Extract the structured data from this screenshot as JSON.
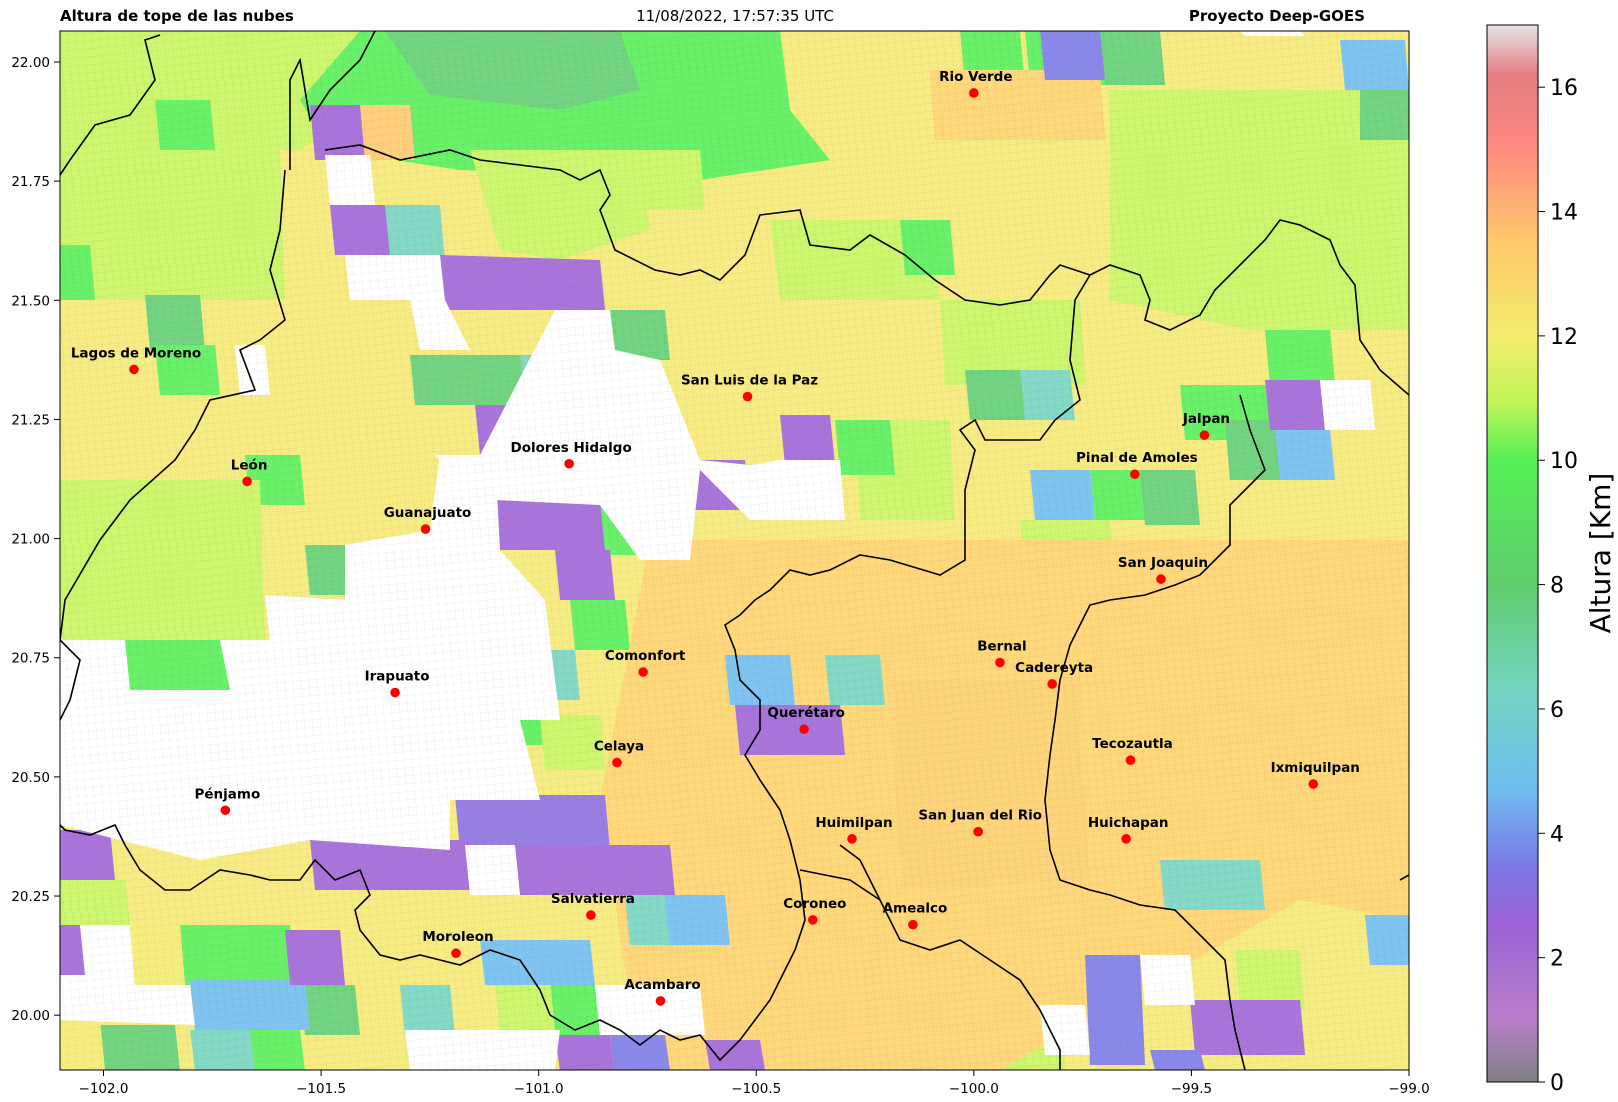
{
  "header": {
    "left_title": "Altura de tope de las nubes",
    "center_title": "11/08/2022, 17:57:35 UTC",
    "right_title": "Proyecto Deep-GOES"
  },
  "map": {
    "lon_range": [
      -102.1,
      -99.0
    ],
    "lat_range": [
      19.885,
      22.065
    ],
    "x_ticks": [
      {
        "value": -102.0,
        "label": "−102.0"
      },
      {
        "value": -101.5,
        "label": "−101.5"
      },
      {
        "value": -101.0,
        "label": "−101.0"
      },
      {
        "value": -100.5,
        "label": "−100.5"
      },
      {
        "value": -100.0,
        "label": "−100.0"
      },
      {
        "value": -99.5,
        "label": "−99.5"
      },
      {
        "value": -99.0,
        "label": "−99.0"
      }
    ],
    "y_ticks": [
      {
        "value": 20.0,
        "label": "20.00"
      },
      {
        "value": 20.25,
        "label": "20.25"
      },
      {
        "value": 20.5,
        "label": "20.50"
      },
      {
        "value": 20.75,
        "label": "20.75"
      },
      {
        "value": 21.0,
        "label": "21.00"
      },
      {
        "value": 21.25,
        "label": "21.25"
      },
      {
        "value": 21.5,
        "label": "21.50"
      },
      {
        "value": 21.75,
        "label": "21.75"
      },
      {
        "value": 22.0,
        "label": "22.00"
      }
    ],
    "marker_color": "#ff0000",
    "cities": [
      {
        "name": "Rio Verde",
        "lon": -100.0,
        "lat": 21.935
      },
      {
        "name": "Lagos de Moreno",
        "lon": -101.93,
        "lat": 21.355
      },
      {
        "name": "San Luis de la Paz",
        "lon": -100.52,
        "lat": 21.298
      },
      {
        "name": "Jalpan",
        "lon": -99.47,
        "lat": 21.217
      },
      {
        "name": "Dolores Hidalgo",
        "lon": -100.93,
        "lat": 21.157
      },
      {
        "name": "León",
        "lon": -101.67,
        "lat": 21.12
      },
      {
        "name": "Pinal de Amoles",
        "lon": -99.63,
        "lat": 21.135
      },
      {
        "name": "Guanajuato",
        "lon": -101.26,
        "lat": 21.02
      },
      {
        "name": "San Joaquin",
        "lon": -99.57,
        "lat": 20.915
      },
      {
        "name": "Bernal",
        "lon": -99.94,
        "lat": 20.74
      },
      {
        "name": "Comonfort",
        "lon": -100.76,
        "lat": 20.72
      },
      {
        "name": "Cadereyta",
        "lon": -99.82,
        "lat": 20.695
      },
      {
        "name": "Irapuato",
        "lon": -101.33,
        "lat": 20.677
      },
      {
        "name": "Querétaro",
        "lon": -100.39,
        "lat": 20.6
      },
      {
        "name": "Tecozautla",
        "lon": -99.64,
        "lat": 20.535
      },
      {
        "name": "Celaya",
        "lon": -100.82,
        "lat": 20.53
      },
      {
        "name": "Ixmiquilpan",
        "lon": -99.22,
        "lat": 20.485
      },
      {
        "name": "Pénjamo",
        "lon": -101.72,
        "lat": 20.43
      },
      {
        "name": "San Juan del Rio",
        "lon": -99.99,
        "lat": 20.385
      },
      {
        "name": "Huimilpan",
        "lon": -100.28,
        "lat": 20.37
      },
      {
        "name": "Huichapan",
        "lon": -99.65,
        "lat": 20.37
      },
      {
        "name": "Salvatierra",
        "lon": -100.88,
        "lat": 20.21
      },
      {
        "name": "Coroneo",
        "lon": -100.37,
        "lat": 20.2
      },
      {
        "name": "Amealco",
        "lon": -100.14,
        "lat": 20.19
      },
      {
        "name": "Moroleon",
        "lon": -101.19,
        "lat": 20.13
      },
      {
        "name": "Acambaro",
        "lon": -100.72,
        "lat": 20.03
      }
    ]
  },
  "colorbar": {
    "label": "Altura [Km]",
    "range": [
      0,
      17
    ],
    "ticks": [
      {
        "value": 0,
        "label": "0"
      },
      {
        "value": 2,
        "label": "2"
      },
      {
        "value": 4,
        "label": "4"
      },
      {
        "value": 6,
        "label": "6"
      },
      {
        "value": 8,
        "label": "8"
      },
      {
        "value": 10,
        "label": "10"
      },
      {
        "value": 12,
        "label": "12"
      },
      {
        "value": 14,
        "label": "14"
      },
      {
        "value": 16,
        "label": "16"
      }
    ],
    "stops": [
      {
        "value": 0,
        "color": "#808080"
      },
      {
        "value": 1,
        "color": "#b77fc9"
      },
      {
        "value": 2.5,
        "color": "#9e62d6"
      },
      {
        "value": 3.5,
        "color": "#7a79e6"
      },
      {
        "value": 4.7,
        "color": "#6fbdf0"
      },
      {
        "value": 6.3,
        "color": "#74d4c0"
      },
      {
        "value": 8,
        "color": "#5fce6f"
      },
      {
        "value": 10,
        "color": "#55f055"
      },
      {
        "value": 11,
        "color": "#c7f55a"
      },
      {
        "value": 12,
        "color": "#f4ec6e"
      },
      {
        "value": 13.5,
        "color": "#ffc96a"
      },
      {
        "value": 15,
        "color": "#ff8a80"
      },
      {
        "value": 16.2,
        "color": "#e27d80"
      },
      {
        "value": 17,
        "color": "#e6e6e6"
      }
    ]
  }
}
